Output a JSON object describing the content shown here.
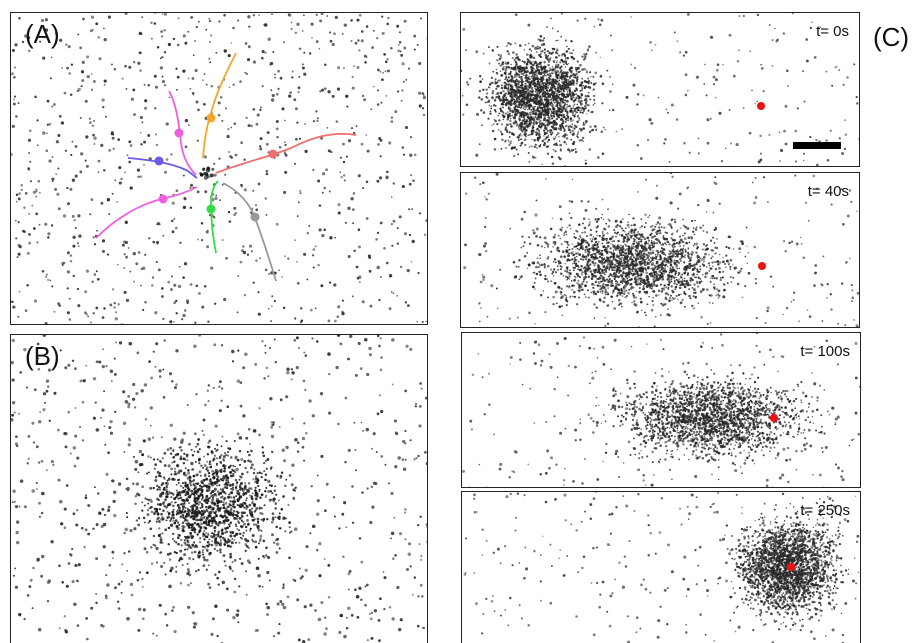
{
  "figure": {
    "panel_a": {
      "label": "(A)"
    },
    "panel_b": {
      "label": "(B)"
    },
    "panel_c": {
      "label": "(C)"
    },
    "frames": [
      {
        "time": "t= 0s"
      },
      {
        "time": "t= 40s"
      },
      {
        "time": "t= 100s"
      },
      {
        "time": "t= 250s"
      }
    ],
    "trajectory_colors": [
      "#f4a62a",
      "#ee5fe0",
      "#6b5ce6",
      "#ee5fe0",
      "#33dd44",
      "#999999",
      "#f07070"
    ],
    "marker_color": "#ee1111",
    "scale_bar": "scale-bar"
  }
}
